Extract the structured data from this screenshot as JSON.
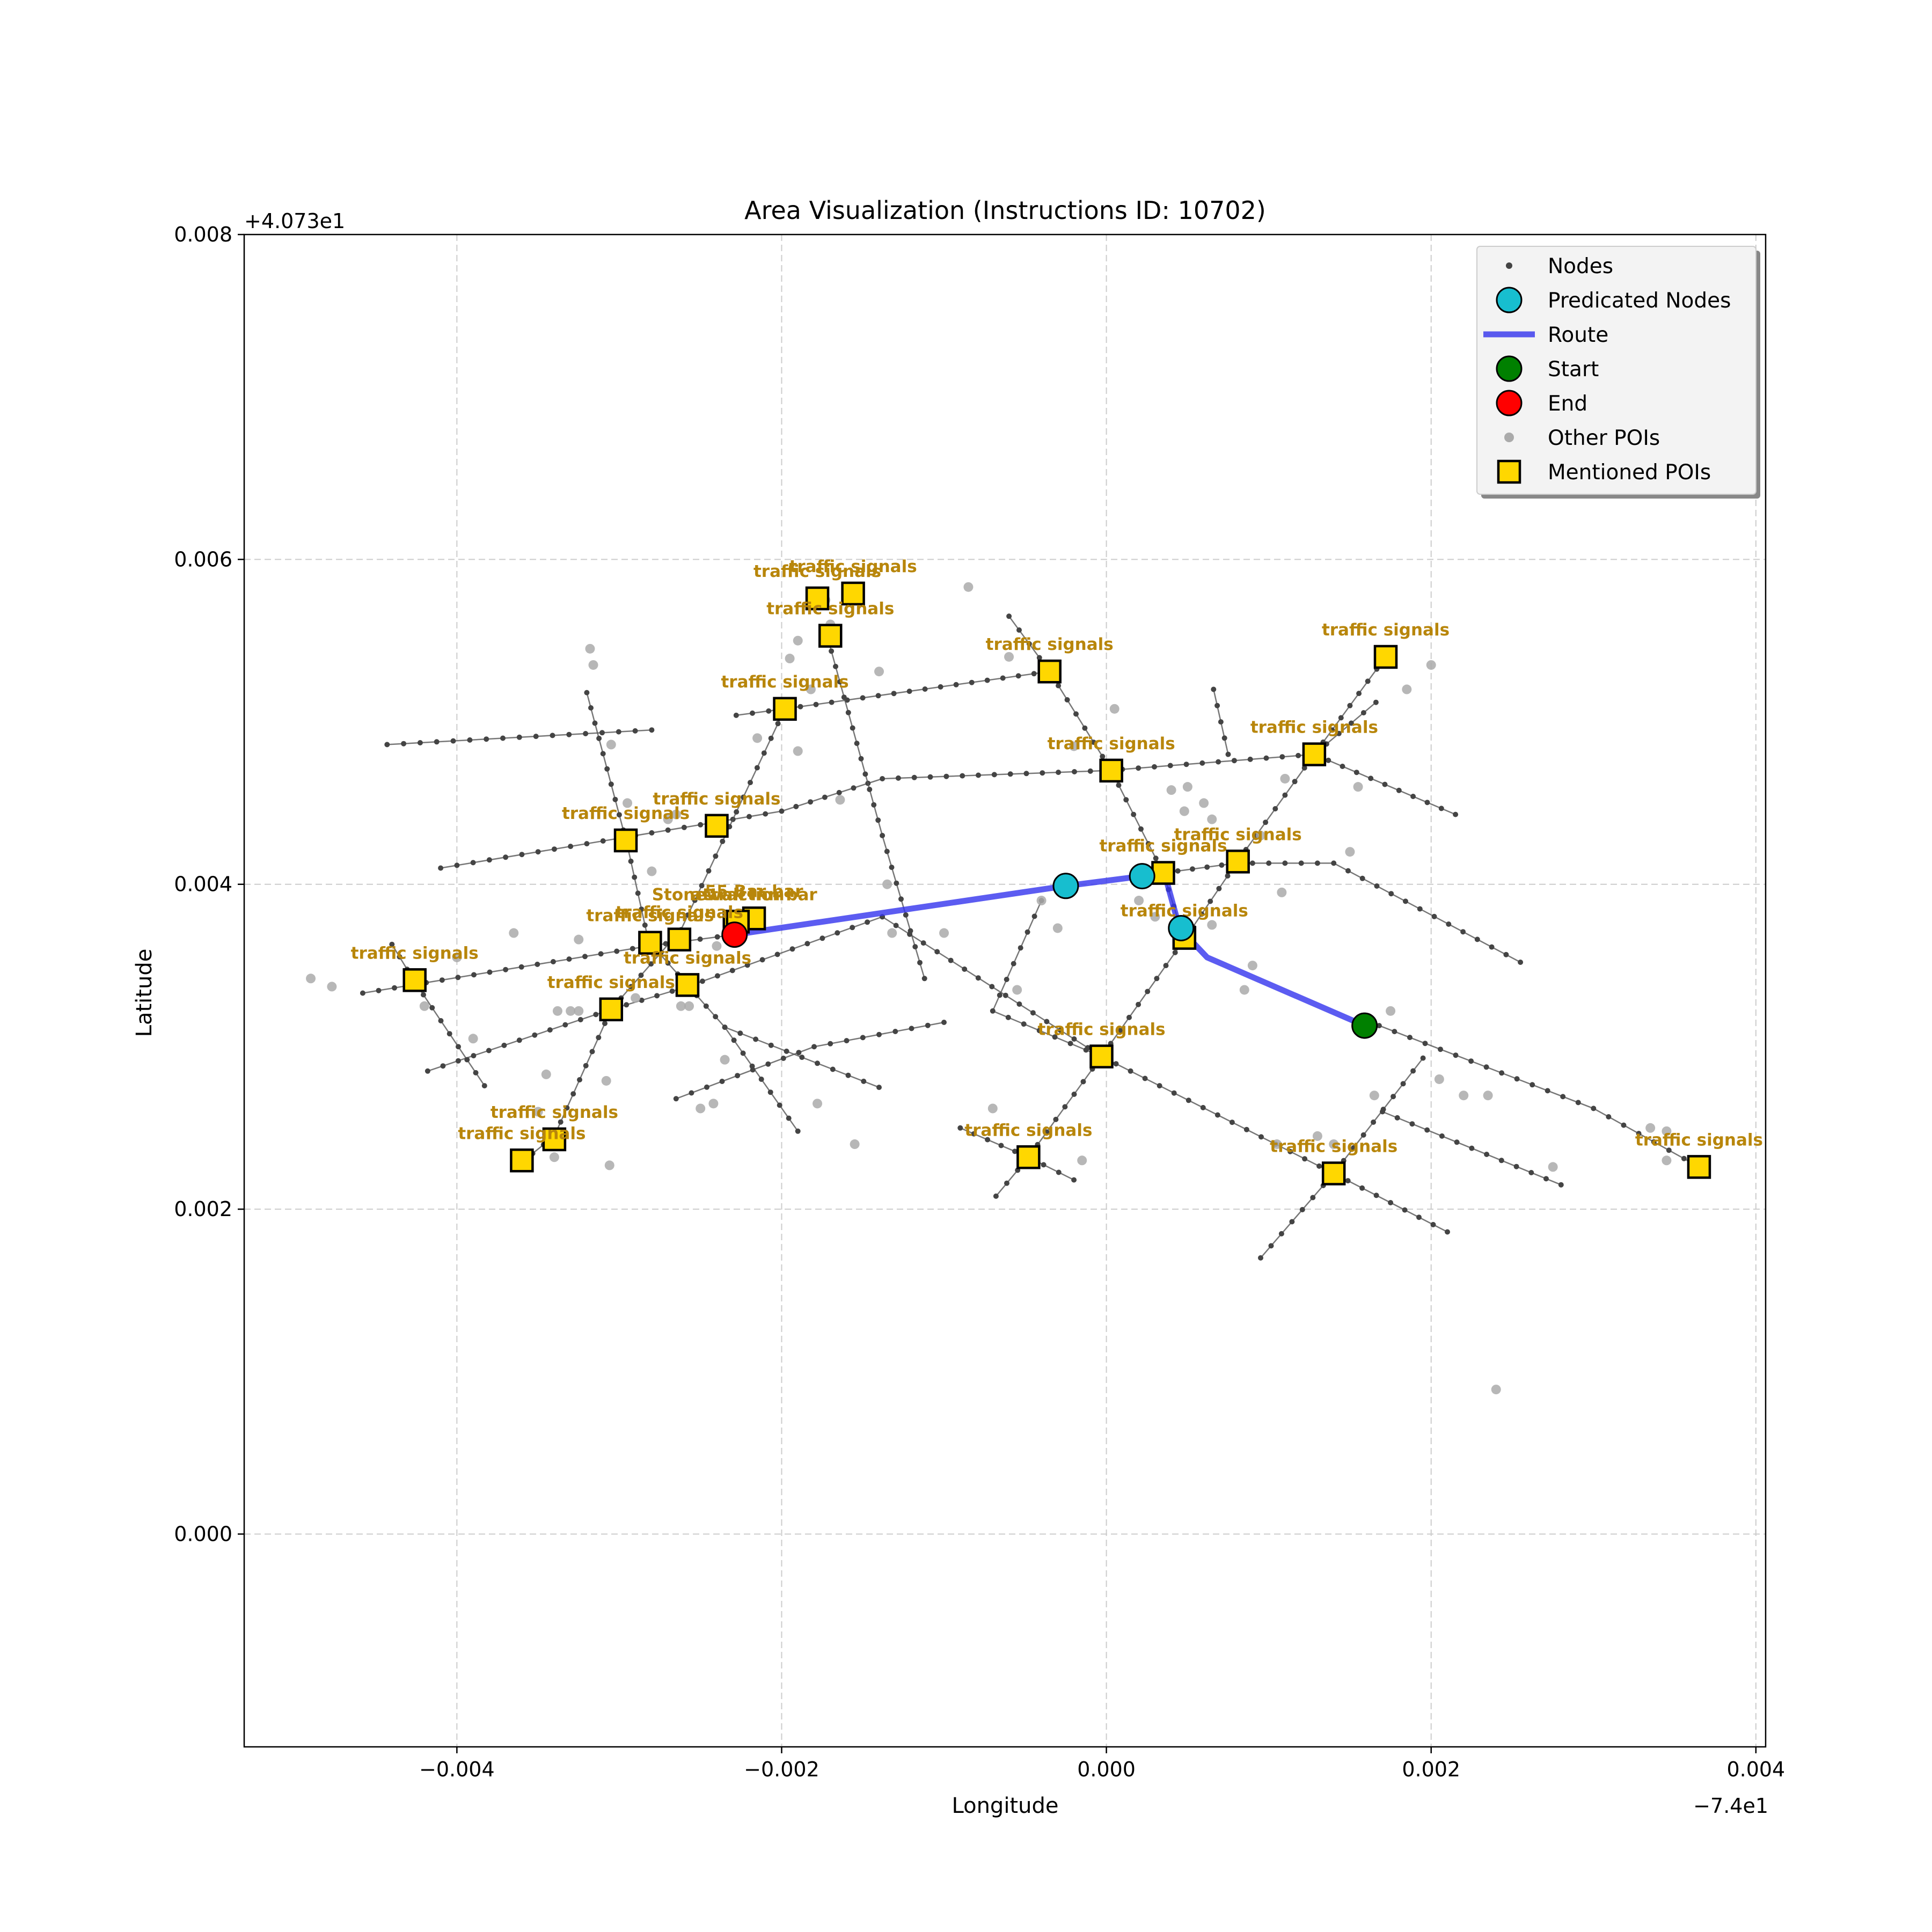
{
  "chart_data": {
    "type": "scatter",
    "title": "Area Visualization (Instructions ID: 10702)",
    "xlabel": "Longitude",
    "ylabel": "Latitude",
    "x_offset_label": "−7.4e1",
    "y_offset_label": "+4.073e1",
    "xlim": [
      -0.00531,
      0.00406
    ],
    "ylim": [
      -0.00131,
      0.008
    ],
    "x_ticks": [
      {
        "value": -0.004,
        "label": "−0.004"
      },
      {
        "value": -0.002,
        "label": "−0.002"
      },
      {
        "value": 0.0,
        "label": "0.000"
      },
      {
        "value": 0.002,
        "label": "0.002"
      },
      {
        "value": 0.004,
        "label": "0.004"
      }
    ],
    "y_ticks": [
      {
        "value": 0.0,
        "label": "0.000"
      },
      {
        "value": 0.002,
        "label": "0.002"
      },
      {
        "value": 0.004,
        "label": "0.004"
      },
      {
        "value": 0.006,
        "label": "0.006"
      },
      {
        "value": 0.008,
        "label": "0.008"
      }
    ],
    "grid": true,
    "legend_position": "top-right",
    "legend": [
      {
        "label": "Nodes",
        "marker": "node"
      },
      {
        "label": "Predicated Nodes",
        "marker": "predicated"
      },
      {
        "label": "Route",
        "marker": "route"
      },
      {
        "label": "Start",
        "marker": "start"
      },
      {
        "label": "End",
        "marker": "end"
      },
      {
        "label": "Other POIs",
        "marker": "other"
      },
      {
        "label": "Mentioned POIs",
        "marker": "mentioned"
      }
    ],
    "colors": {
      "node": "#444444",
      "road": "#555555",
      "predicated": "#17becf",
      "route": "#3333ee",
      "start": "#008000",
      "end": "#ff0000",
      "other_poi": "#aaaaaa",
      "mentioned_poi": "#ffd700",
      "poi_label": "#b8860b",
      "grid": "#cccccc"
    },
    "roads": [
      [
        [
          -0.0041,
          0.0041
        ],
        [
          -0.002,
          0.00445
        ],
        [
          -0.00138,
          0.00465
        ],
        [
          0.0,
          0.0047
        ],
        [
          0.00128,
          0.0048
        ]
      ],
      [
        [
          -0.00458,
          0.00333
        ],
        [
          -0.00282,
          0.00362
        ],
        [
          -0.00229,
          0.00369
        ]
      ],
      [
        [
          -0.00418,
          0.00285
        ],
        [
          -0.00305,
          0.00323
        ],
        [
          -0.00258,
          0.00337
        ],
        [
          -0.00138,
          0.0038
        ]
      ],
      [
        [
          -0.00228,
          0.00504
        ],
        [
          -0.00198,
          0.00508
        ],
        [
          -0.00035,
          0.00531
        ]
      ],
      [
        [
          -0.00443,
          0.00486
        ],
        [
          -0.0028,
          0.00495
        ]
      ],
      [
        [
          -0.0032,
          0.00518
        ],
        [
          -0.00295,
          0.00424
        ],
        [
          -0.00282,
          0.00365
        ],
        [
          -0.00258,
          0.00338
        ],
        [
          -0.00235,
          0.00312
        ],
        [
          -0.0019,
          0.00248
        ]
      ],
      [
        [
          -0.0044,
          0.00363
        ],
        [
          -0.00426,
          0.0034
        ],
        [
          -0.00383,
          0.00276
        ]
      ],
      [
        [
          -0.00198,
          0.00508
        ],
        [
          -0.00262,
          0.00372
        ],
        [
          -0.00305,
          0.00323
        ],
        [
          -0.0034,
          0.00245
        ],
        [
          -0.0036,
          0.00229
        ]
      ],
      [
        [
          -0.00172,
          0.00553
        ],
        [
          -0.00138,
          0.0043
        ],
        [
          -0.00112,
          0.00342
        ]
      ],
      [
        [
          -0.0006,
          0.00565
        ],
        [
          -0.00035,
          0.00531
        ],
        [
          3e-05,
          0.0047
        ],
        [
          0.00035,
          0.00407
        ],
        [
          0.00048,
          0.00366
        ]
      ],
      [
        [
          0.00066,
          0.0052
        ],
        [
          0.00075,
          0.0048
        ]
      ],
      [
        [
          0.00166,
          0.00512
        ],
        [
          0.00128,
          0.0048
        ],
        [
          0.00215,
          0.00443
        ]
      ],
      [
        [
          0.00172,
          0.0054
        ],
        [
          0.00128,
          0.0048
        ],
        [
          0.0008,
          0.00413
        ],
        [
          0.00048,
          0.00366
        ],
        [
          -3e-05,
          0.00294
        ],
        [
          -0.00048,
          0.00232
        ],
        [
          -0.00068,
          0.00208
        ]
      ],
      [
        [
          0.00035,
          0.00407
        ],
        [
          0.0008,
          0.00413
        ],
        [
          0.0014,
          0.00413
        ],
        [
          0.00255,
          0.00352
        ]
      ],
      [
        [
          -0.00138,
          0.0038
        ],
        [
          -3e-05,
          0.00294
        ],
        [
          0.0014,
          0.00222
        ],
        [
          0.0021,
          0.00186
        ]
      ],
      [
        [
          0.00168,
          0.00313
        ],
        [
          0.003,
          0.00262
        ],
        [
          0.00365,
          0.00226
        ]
      ],
      [
        [
          0.00195,
          0.00293
        ],
        [
          0.0014,
          0.00222
        ],
        [
          0.00095,
          0.0017
        ]
      ],
      [
        [
          0.0017,
          0.0026
        ],
        [
          0.0028,
          0.00215
        ]
      ],
      [
        [
          -3e-05,
          0.00294
        ],
        [
          -0.0007,
          0.00322
        ],
        [
          -0.0004,
          0.0039
        ]
      ],
      [
        [
          -0.0009,
          0.0025
        ],
        [
          -0.00048,
          0.00232
        ],
        [
          -0.0002,
          0.00218
        ]
      ],
      [
        [
          -0.00265,
          0.00268
        ],
        [
          -0.0018,
          0.003
        ],
        [
          -0.001,
          0.00315
        ]
      ],
      [
        [
          -0.00235,
          0.00312
        ],
        [
          -0.0014,
          0.00275
        ]
      ]
    ],
    "other_pois": [
      [
        -0.0049,
        0.00342
      ],
      [
        -0.00477,
        0.00337
      ],
      [
        -0.0042,
        0.00325
      ],
      [
        -0.004,
        0.00355
      ],
      [
        -0.0039,
        0.00305
      ],
      [
        -0.00365,
        0.0037
      ],
      [
        -0.0035,
        0.0026
      ],
      [
        -0.00345,
        0.00283
      ],
      [
        -0.0034,
        0.00232
      ],
      [
        -0.00338,
        0.00322
      ],
      [
        -0.0033,
        0.00322
      ],
      [
        -0.00325,
        0.00322
      ],
      [
        -0.00325,
        0.00366
      ],
      [
        -0.00318,
        0.00545
      ],
      [
        -0.00316,
        0.00535
      ],
      [
        -0.00305,
        0.00486
      ],
      [
        -0.00308,
        0.00279
      ],
      [
        -0.00306,
        0.00227
      ],
      [
        -0.00295,
        0.0045
      ],
      [
        -0.0029,
        0.0033
      ],
      [
        -0.0028,
        0.00408
      ],
      [
        -0.0027,
        0.0044
      ],
      [
        -0.00265,
        0.00443
      ],
      [
        -0.00262,
        0.00325
      ],
      [
        -0.00257,
        0.00325
      ],
      [
        -0.0025,
        0.00262
      ],
      [
        -0.00242,
        0.00265
      ],
      [
        -0.0024,
        0.00362
      ],
      [
        -0.00235,
        0.00292
      ],
      [
        -0.00215,
        0.0049
      ],
      [
        -0.002,
        0.00505
      ],
      [
        -0.00195,
        0.00539
      ],
      [
        -0.0019,
        0.0055
      ],
      [
        -0.0019,
        0.00482
      ],
      [
        -0.00182,
        0.0052
      ],
      [
        -0.00178,
        0.00265
      ],
      [
        -0.00173,
        0.00575
      ],
      [
        -0.0017,
        0.0056
      ],
      [
        -0.00164,
        0.00452
      ],
      [
        -0.00155,
        0.0024
      ],
      [
        -0.0014,
        0.00531
      ],
      [
        -0.00135,
        0.004
      ],
      [
        -0.00132,
        0.0037
      ],
      [
        -0.001,
        0.0037
      ],
      [
        -0.00085,
        0.00583
      ],
      [
        -0.0007,
        0.00262
      ],
      [
        -0.0006,
        0.0054
      ],
      [
        -0.00055,
        0.00335
      ],
      [
        -0.0004,
        0.0039
      ],
      [
        -0.0003,
        0.00373
      ],
      [
        -0.0002,
        0.00485
      ],
      [
        -0.00015,
        0.0023
      ],
      [
        5e-05,
        0.00508
      ],
      [
        0.0002,
        0.0039
      ],
      [
        0.0003,
        0.0038
      ],
      [
        0.0004,
        0.00458
      ],
      [
        0.00048,
        0.00445
      ],
      [
        0.0005,
        0.0046
      ],
      [
        0.0006,
        0.0045
      ],
      [
        0.00065,
        0.0044
      ],
      [
        0.00065,
        0.00375
      ],
      [
        0.00085,
        0.00335
      ],
      [
        0.0009,
        0.0035
      ],
      [
        0.00095,
        0.0043
      ],
      [
        0.00108,
        0.00395
      ],
      [
        0.0011,
        0.00465
      ],
      [
        0.00105,
        0.0024
      ],
      [
        0.0013,
        0.00245
      ],
      [
        0.0014,
        0.0024
      ],
      [
        0.0015,
        0.0042
      ],
      [
        0.00155,
        0.0046
      ],
      [
        0.00165,
        0.0027
      ],
      [
        0.00175,
        0.00322
      ],
      [
        0.00185,
        0.0052
      ],
      [
        0.002,
        0.00535
      ],
      [
        0.00205,
        0.0028
      ],
      [
        0.0022,
        0.0027
      ],
      [
        0.00235,
        0.0027
      ],
      [
        0.0024,
        0.00089
      ],
      [
        0.00275,
        0.00226
      ],
      [
        0.00335,
        0.0025
      ],
      [
        0.00345,
        0.00248
      ],
      [
        0.00345,
        0.0023
      ]
    ],
    "route": [
      [
        0.00159,
        0.00313
      ],
      [
        0.00062,
        0.00355
      ],
      [
        0.00045,
        0.00373
      ],
      [
        0.00036,
        0.00406
      ],
      [
        0.00022,
        0.00405
      ],
      [
        -0.00025,
        0.00399
      ],
      [
        -0.00229,
        0.00369
      ]
    ],
    "predicated_nodes": [
      [
        -0.00025,
        0.00399
      ],
      [
        0.00022,
        0.00405
      ],
      [
        0.00046,
        0.00373
      ]
    ],
    "start": [
      0.00159,
      0.00313
    ],
    "end": [
      -0.00229,
      0.00369
    ],
    "mentioned_pois": [
      {
        "x": -0.00178,
        "y": 0.00576,
        "label": "traffic signals",
        "dy": 20
      },
      {
        "x": -0.00156,
        "y": 0.00579,
        "label": "traffic signals",
        "dy": 20
      },
      {
        "x": -0.0017,
        "y": 0.00553,
        "label": "traffic signals",
        "dy": 20
      },
      {
        "x": -0.00035,
        "y": 0.00531,
        "label": "traffic signals",
        "dy": 20
      },
      {
        "x": 0.00172,
        "y": 0.0054,
        "label": "traffic signals",
        "dy": 20
      },
      {
        "x": -0.00198,
        "y": 0.00508,
        "label": "traffic signals",
        "dy": 20
      },
      {
        "x": 3e-05,
        "y": 0.0047,
        "label": "traffic signals",
        "dy": 20
      },
      {
        "x": 0.00128,
        "y": 0.0048,
        "label": "traffic signals",
        "dy": 20
      },
      {
        "x": -0.0024,
        "y": 0.00436,
        "label": "traffic signals",
        "dy": 20
      },
      {
        "x": -0.00296,
        "y": 0.00427,
        "label": "traffic signals",
        "dy": 20
      },
      {
        "x": 0.00035,
        "y": 0.00407,
        "label": "traffic signals",
        "dy": 20
      },
      {
        "x": 0.00081,
        "y": 0.00414,
        "label": "traffic signals",
        "dy": 20
      },
      {
        "x": -0.00229,
        "y": 0.00377,
        "label": "Stonewall Inn bar",
        "dy": 20
      },
      {
        "x": -0.00217,
        "y": 0.00379,
        "label": "55 Bar bar",
        "dy": 20
      },
      {
        "x": -0.00227,
        "y": 0.00377,
        "label": "attraction",
        "dy": 20
      },
      {
        "x": -0.00281,
        "y": 0.00364,
        "label": "traffic signals",
        "dy": 20
      },
      {
        "x": -0.00263,
        "y": 0.00366,
        "label": "traffic signals",
        "dy": 20
      },
      {
        "x": 0.00048,
        "y": 0.00367,
        "label": "traffic signals",
        "dy": 20
      },
      {
        "x": -0.00426,
        "y": 0.00341,
        "label": "traffic signals",
        "dy": 20
      },
      {
        "x": -0.00258,
        "y": 0.00338,
        "label": "traffic signals",
        "dy": 20
      },
      {
        "x": -0.00305,
        "y": 0.00323,
        "label": "traffic signals",
        "dy": 20
      },
      {
        "x": -3e-05,
        "y": 0.00294,
        "label": "traffic signals",
        "dy": 20
      },
      {
        "x": -0.00048,
        "y": 0.00232,
        "label": "traffic signals",
        "dy": 20
      },
      {
        "x": -0.0034,
        "y": 0.00243,
        "label": "traffic signals",
        "dy": 20
      },
      {
        "x": -0.0036,
        "y": 0.0023,
        "label": "traffic signals",
        "dy": 20
      },
      {
        "x": 0.0014,
        "y": 0.00222,
        "label": "traffic signals",
        "dy": 20
      },
      {
        "x": 0.00365,
        "y": 0.00226,
        "label": "traffic signals",
        "dy": 20
      }
    ]
  }
}
